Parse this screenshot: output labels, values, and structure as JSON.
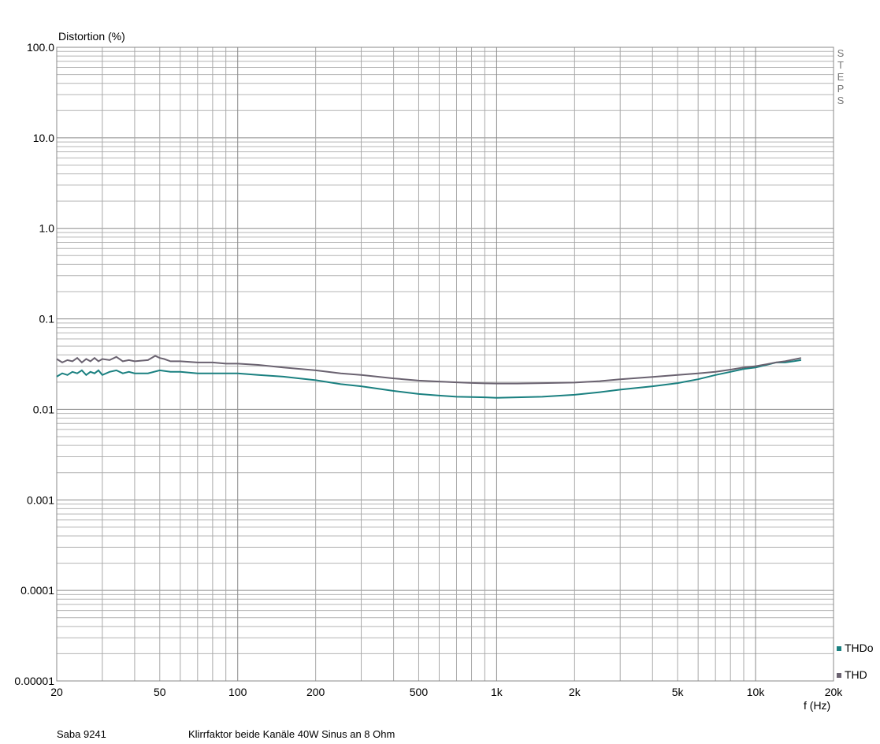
{
  "chart_data": {
    "type": "line",
    "ylabel": "Distortion (%)",
    "xlabel": "f (Hz)",
    "yscale": "log",
    "xscale": "log",
    "xlim": [
      20,
      20000
    ],
    "ylim": [
      1e-05,
      100
    ],
    "y_ticks": [
      "100.0",
      "10.0",
      "1.0",
      "0.1",
      "0.01",
      "0.001",
      "0.0001",
      "0.00001"
    ],
    "y_tick_values": [
      100,
      10,
      1,
      0.1,
      0.01,
      0.001,
      0.0001,
      1e-05
    ],
    "x_ticks": [
      "20",
      "50",
      "100",
      "200",
      "500",
      "1k",
      "2k",
      "5k",
      "10k",
      "20k"
    ],
    "x_tick_values": [
      20,
      50,
      100,
      200,
      500,
      1000,
      2000,
      5000,
      10000,
      20000
    ],
    "grid": true,
    "side_label": "STEPS",
    "legend_position": "bottom-right",
    "series": [
      {
        "name": "THDo",
        "color": "#1a8080",
        "x": [
          20,
          21,
          22,
          23,
          24,
          25,
          26,
          27,
          28,
          29,
          30,
          32,
          34,
          36,
          38,
          40,
          45,
          50,
          55,
          60,
          70,
          80,
          90,
          100,
          120,
          150,
          200,
          250,
          300,
          400,
          500,
          600,
          700,
          800,
          900,
          1000,
          1200,
          1500,
          2000,
          2500,
          3000,
          4000,
          5000,
          6000,
          7000,
          8000,
          9000,
          10000,
          11000,
          12000,
          13000,
          14000,
          15000
        ],
        "y": [
          0.023,
          0.025,
          0.024,
          0.026,
          0.025,
          0.027,
          0.024,
          0.026,
          0.025,
          0.027,
          0.024,
          0.026,
          0.027,
          0.025,
          0.026,
          0.025,
          0.025,
          0.027,
          0.026,
          0.026,
          0.025,
          0.025,
          0.025,
          0.025,
          0.024,
          0.023,
          0.021,
          0.019,
          0.018,
          0.016,
          0.0148,
          0.0142,
          0.0138,
          0.0137,
          0.0136,
          0.0134,
          0.0136,
          0.0138,
          0.0145,
          0.0155,
          0.0165,
          0.018,
          0.0195,
          0.0215,
          0.024,
          0.026,
          0.028,
          0.029,
          0.031,
          0.033,
          0.033,
          0.034,
          0.035
        ]
      },
      {
        "name": "THD",
        "color": "#6a6270",
        "x": [
          20,
          21,
          22,
          23,
          24,
          25,
          26,
          27,
          28,
          29,
          30,
          32,
          34,
          36,
          38,
          40,
          45,
          48,
          50,
          52,
          55,
          60,
          70,
          80,
          90,
          100,
          120,
          150,
          200,
          250,
          300,
          400,
          500,
          600,
          700,
          800,
          900,
          1000,
          1200,
          1500,
          2000,
          2500,
          3000,
          4000,
          5000,
          6000,
          7000,
          8000,
          9000,
          10000,
          11000,
          12000,
          13000,
          14000,
          15000
        ],
        "y": [
          0.036,
          0.033,
          0.035,
          0.034,
          0.037,
          0.033,
          0.036,
          0.034,
          0.037,
          0.034,
          0.036,
          0.035,
          0.038,
          0.034,
          0.035,
          0.034,
          0.035,
          0.039,
          0.037,
          0.036,
          0.034,
          0.034,
          0.033,
          0.033,
          0.032,
          0.032,
          0.031,
          0.029,
          0.027,
          0.025,
          0.024,
          0.022,
          0.0208,
          0.0203,
          0.0199,
          0.0196,
          0.0194,
          0.0193,
          0.0193,
          0.0195,
          0.0198,
          0.0205,
          0.0215,
          0.0228,
          0.024,
          0.025,
          0.026,
          0.0275,
          0.029,
          0.03,
          0.0315,
          0.033,
          0.034,
          0.0355,
          0.037
        ]
      }
    ]
  },
  "footer": {
    "device": "Saba 9241",
    "description": "Klirrfaktor beide Kanäle 40W Sinus an 8 Ohm"
  }
}
